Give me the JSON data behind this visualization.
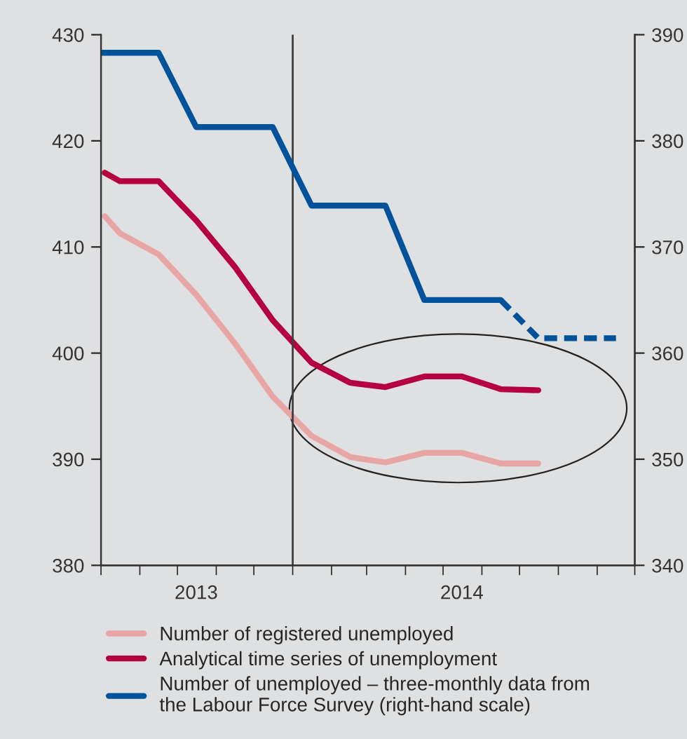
{
  "chart_data": {
    "type": "line",
    "series": [
      {
        "name": "Number of registered unemployed",
        "color": "#e8a5a5",
        "x": [
          "2013-08-04",
          "2013-08-16",
          "2013-09-16",
          "2013-10-16",
          "2013-11-16",
          "2013-12-16",
          "2014-01-16",
          "2014-02-16",
          "2014-03-16",
          "2014-04-16",
          "2014-05-16",
          "2014-06-16",
          "2014-07-16"
        ],
        "values": [
          412.9,
          411.3,
          409.3,
          405.5,
          400.9,
          395.9,
          392.2,
          390.2,
          389.7,
          390.6,
          390.6,
          389.6,
          389.6
        ]
      },
      {
        "name": "Analytical time series of unemployment",
        "color": "#b5003f",
        "x": [
          "2013-08-04",
          "2013-08-16",
          "2013-09-16",
          "2013-10-16",
          "2013-11-16",
          "2013-12-16",
          "2014-01-16",
          "2014-02-16",
          "2014-03-16",
          "2014-04-16",
          "2014-05-16",
          "2014-06-16",
          "2014-07-16"
        ],
        "values": [
          417.0,
          416.2,
          416.2,
          412.5,
          408.1,
          403.1,
          399.1,
          397.2,
          396.8,
          397.8,
          397.8,
          396.6,
          396.5
        ]
      },
      {
        "name": "Number of unemployed – three-monthly data from\nthe Labour Force Survey (right-hand scale)",
        "color": "#00539b",
        "axis": "y2",
        "line_style": "solid",
        "x": [
          "2013-08-01",
          "2013-08-16",
          "2013-09-16",
          "2013-10-16",
          "2013-11-16",
          "2013-12-16",
          "2014-01-16",
          "2014-02-16",
          "2014-03-16",
          "2014-04-16",
          "2014-05-16",
          "2014-06-16"
        ],
        "values": [
          388.3,
          388.3,
          388.3,
          381.3,
          381.3,
          381.3,
          373.9,
          373.9,
          373.9,
          365.0,
          365.0,
          365.0
        ]
      },
      {
        "color": "#00539b",
        "axis": "y2",
        "line_style": "dashed",
        "x": [
          "2014-06-16",
          "2014-07-16",
          "2014-08-16",
          "2014-09-16"
        ],
        "values": [
          365.0,
          361.4,
          361.4,
          361.4
        ]
      }
    ],
    "xlim": [
      "2013-08-01",
      "2014-10-01"
    ],
    "xticks": [
      {
        "value": "2013-08-01",
        "label": null
      },
      {
        "value": "2013-09-01",
        "label": null
      },
      {
        "value": "2013-10-01",
        "label": null
      },
      {
        "value": "2013-10-16",
        "label": "2013"
      },
      {
        "value": "2013-11-01",
        "label": null
      },
      {
        "value": "2013-12-01",
        "label": null
      },
      {
        "value": "2014-01-01",
        "label": null
      },
      {
        "value": "2014-02-01",
        "label": null
      },
      {
        "value": "2014-03-01",
        "label": null
      },
      {
        "value": "2014-04-01",
        "label": null
      },
      {
        "value": "2014-05-01",
        "label": null
      },
      {
        "value": "2014-05-16",
        "label": "2014"
      },
      {
        "value": "2014-06-01",
        "label": null
      },
      {
        "value": "2014-07-01",
        "label": null
      },
      {
        "value": "2014-08-01",
        "label": null
      },
      {
        "value": "2014-09-01",
        "label": null
      },
      {
        "value": "2014-10-01",
        "label": null
      }
    ],
    "ylim": [
      380,
      430
    ],
    "yticks": [
      380,
      390,
      400,
      410,
      420,
      430
    ],
    "y2lim": [
      340,
      390
    ],
    "y2ticks": [
      340,
      350,
      360,
      370,
      380,
      390
    ],
    "ref_lines": [
      {
        "axis": "x",
        "value": "2014-01-01",
        "color": "#404040"
      }
    ],
    "legend": "bottom",
    "grid": false
  }
}
